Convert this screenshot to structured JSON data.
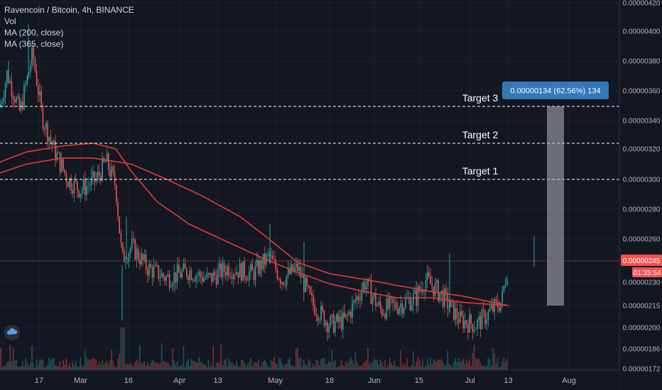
{
  "legend": {
    "symbol": "Ravencoin / Bitcoin, 4h, BINANCE",
    "vol": "Vol",
    "ma200": "MA (200, close)",
    "ma365": "MA (365, close)"
  },
  "price_tag": "0.00000245",
  "countdown": "01:35:54",
  "measure_label": "0.00000134 (62.56%) 134",
  "colors": {
    "background": "#131722",
    "axis_text": "#d1d4dc",
    "ma": "#e53935",
    "price_line": "#ef5350",
    "measure": "#3179b8"
  },
  "chart_data": {
    "type": "candlestick",
    "title": "Ravencoin / Bitcoin, 4h, BINANCE",
    "yaxis_ticks": [
      "0.00000420",
      "0.00000400",
      "0.00000380",
      "0.00000360",
      "0.00000340",
      "0.00000320",
      "0.00000300",
      "0.00000280",
      "0.00000260",
      "0.00000245",
      "0.00000230",
      "0.00000215",
      "0.00000200",
      "0.00000186",
      "0.00000172"
    ],
    "xaxis_ticks": [
      "17",
      "Mar",
      "16",
      "Apr",
      "13",
      "May",
      "18",
      "Jun",
      "15",
      "Jul",
      "13",
      "Aug"
    ],
    "current_price": 2.45e-06,
    "targets": [
      {
        "label": "Target 1",
        "value": "0.00000300"
      },
      {
        "label": "Target 2",
        "value": "0.00000324"
      },
      {
        "label": "Target 3",
        "value": "0.00000349"
      }
    ],
    "measure": {
      "from": 2.15e-06,
      "to": 3.49e-06,
      "change": "0.00000134",
      "percent": "62.56%",
      "bars": "134"
    },
    "series": [
      {
        "name": "MA (200, close)",
        "color": "#e53935"
      },
      {
        "name": "MA (365, close)",
        "color": "#e53935"
      }
    ],
    "price_path": [
      {
        "x": "2020-02-03",
        "y": 3.3e-06
      },
      {
        "x": "2020-02-07",
        "y": 3.72e-06
      },
      {
        "x": "2020-02-11",
        "y": 3.45e-06
      },
      {
        "x": "2020-02-15",
        "y": 3.85e-06
      },
      {
        "x": "2020-02-18",
        "y": 3.42e-06
      },
      {
        "x": "2020-02-22",
        "y": 3.18e-06
      },
      {
        "x": "2020-02-26",
        "y": 3e-06
      },
      {
        "x": "2020-03-01",
        "y": 2.93e-06
      },
      {
        "x": "2020-03-06",
        "y": 3e-06
      },
      {
        "x": "2020-03-09",
        "y": 3.12e-06
      },
      {
        "x": "2020-03-12",
        "y": 2.96e-06
      },
      {
        "x": "2020-03-14",
        "y": 2.46e-06
      },
      {
        "x": "2020-03-17",
        "y": 2.55e-06
      },
      {
        "x": "2020-03-22",
        "y": 2.4e-06
      },
      {
        "x": "2020-03-28",
        "y": 2.33e-06
      },
      {
        "x": "2020-04-04",
        "y": 2.38e-06
      },
      {
        "x": "2020-04-10",
        "y": 2.32e-06
      },
      {
        "x": "2020-04-16",
        "y": 2.4e-06
      },
      {
        "x": "2020-04-24",
        "y": 2.36e-06
      },
      {
        "x": "2020-04-29",
        "y": 2.48e-06
      },
      {
        "x": "2020-05-03",
        "y": 2.32e-06
      },
      {
        "x": "2020-05-08",
        "y": 2.4e-06
      },
      {
        "x": "2020-05-12",
        "y": 2.18e-06
      },
      {
        "x": "2020-05-18",
        "y": 2.02e-06
      },
      {
        "x": "2020-05-23",
        "y": 2.05e-06
      },
      {
        "x": "2020-05-29",
        "y": 2.3e-06
      },
      {
        "x": "2020-06-03",
        "y": 2.12e-06
      },
      {
        "x": "2020-06-08",
        "y": 2.15e-06
      },
      {
        "x": "2020-06-14",
        "y": 2.2e-06
      },
      {
        "x": "2020-06-17",
        "y": 2.32e-06
      },
      {
        "x": "2020-06-22",
        "y": 2.22e-06
      },
      {
        "x": "2020-06-28",
        "y": 2.05e-06
      },
      {
        "x": "2020-07-03",
        "y": 2.02e-06
      },
      {
        "x": "2020-07-08",
        "y": 2.12e-06
      },
      {
        "x": "2020-07-11",
        "y": 2.18e-06
      },
      {
        "x": "2020-07-13",
        "y": 2.45e-06
      }
    ],
    "ma200_path": [
      {
        "x": "2020-02-03",
        "y": 3.1e-06
      },
      {
        "x": "2020-02-13",
        "y": 3.18e-06
      },
      {
        "x": "2020-02-24",
        "y": 3.22e-06
      },
      {
        "x": "2020-03-05",
        "y": 3.24e-06
      },
      {
        "x": "2020-03-12",
        "y": 3.2e-06
      },
      {
        "x": "2020-03-17",
        "y": 3.05e-06
      },
      {
        "x": "2020-03-25",
        "y": 2.85e-06
      },
      {
        "x": "2020-04-04",
        "y": 2.7e-06
      },
      {
        "x": "2020-04-16",
        "y": 2.58e-06
      },
      {
        "x": "2020-04-28",
        "y": 2.46e-06
      },
      {
        "x": "2020-05-08",
        "y": 2.37e-06
      },
      {
        "x": "2020-05-18",
        "y": 2.29e-06
      },
      {
        "x": "2020-05-29",
        "y": 2.24e-06
      },
      {
        "x": "2020-06-08",
        "y": 2.2e-06
      },
      {
        "x": "2020-06-19",
        "y": 2.2e-06
      },
      {
        "x": "2020-06-29",
        "y": 2.17e-06
      },
      {
        "x": "2020-07-13",
        "y": 2.15e-06
      }
    ],
    "ma365_path": [
      {
        "x": "2020-02-03",
        "y": 3.03e-06
      },
      {
        "x": "2020-02-13",
        "y": 3.1e-06
      },
      {
        "x": "2020-02-24",
        "y": 3.14e-06
      },
      {
        "x": "2020-03-05",
        "y": 3.14e-06
      },
      {
        "x": "2020-03-17",
        "y": 3.1e-06
      },
      {
        "x": "2020-03-28",
        "y": 3e-06
      },
      {
        "x": "2020-04-08",
        "y": 2.89e-06
      },
      {
        "x": "2020-04-20",
        "y": 2.75e-06
      },
      {
        "x": "2020-04-29",
        "y": 2.6e-06
      },
      {
        "x": "2020-05-08",
        "y": 2.44e-06
      },
      {
        "x": "2020-05-18",
        "y": 2.36e-06
      },
      {
        "x": "2020-05-29",
        "y": 2.32e-06
      },
      {
        "x": "2020-06-08",
        "y": 2.28e-06
      },
      {
        "x": "2020-06-19",
        "y": 2.24e-06
      },
      {
        "x": "2020-06-29",
        "y": 2.21e-06
      },
      {
        "x": "2020-07-13",
        "y": 2.15e-06
      }
    ]
  }
}
